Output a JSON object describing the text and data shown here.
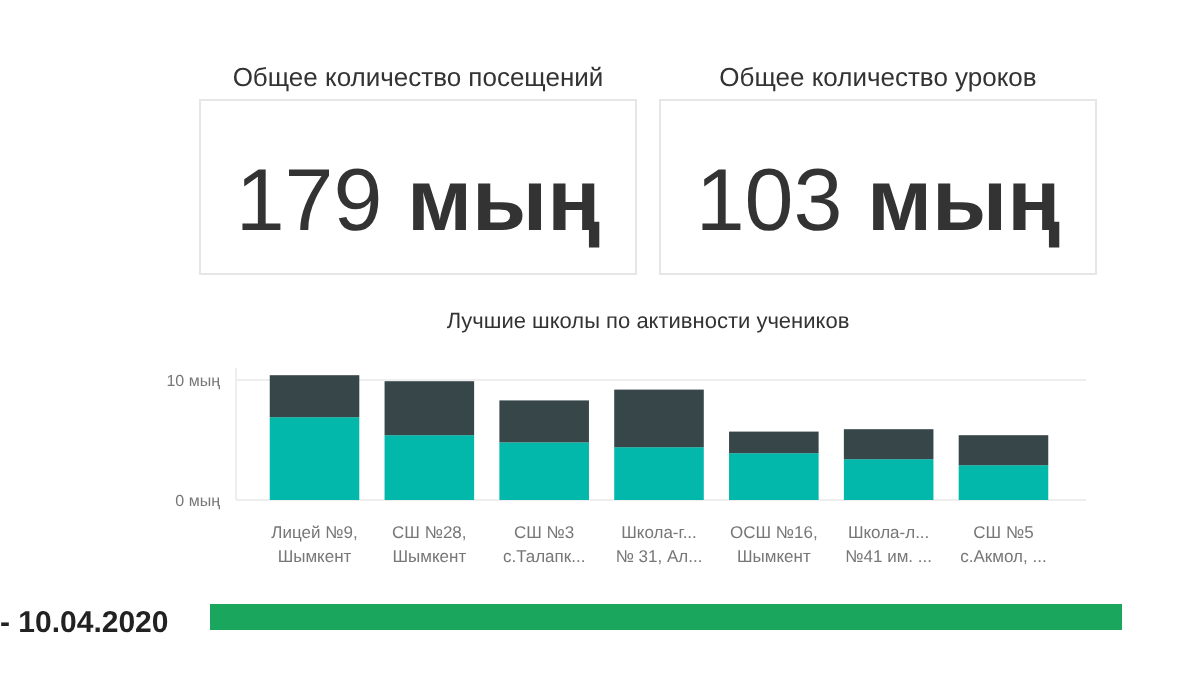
{
  "chart_data": {
    "type": "bar",
    "title": "Лучшие школы по активности учеников",
    "categories": [
      "Лицей №9,\nШымкент",
      "СШ №28,\nШымкент",
      "СШ №3\nс.Талапк...",
      "Школа-г...\n№ 31, Ал...",
      "ОСШ №16,\nШымкент",
      "Школа-л...\n№41 им. ...",
      "СШ №5\nс.Акмол, ..."
    ],
    "stacked": true,
    "series": [
      {
        "color": "#01b8aa",
        "values": [
          6.9,
          5.4,
          4.8,
          4.4,
          3.9,
          3.4,
          2.9
        ]
      },
      {
        "color": "#374649",
        "values": [
          3.5,
          4.5,
          3.5,
          4.8,
          1.8,
          2.5,
          2.5
        ]
      }
    ],
    "ylim": [
      0,
      11
    ],
    "yticks": [
      {
        "value": 0,
        "label": "0 мың"
      },
      {
        "value": 10,
        "label": "10 мың"
      }
    ],
    "grid": "y",
    "annotations": [
      "Общее количество посещений",
      "179 мың",
      "Общее количество уроков",
      "103 мың",
      "- 10.04.2020"
    ]
  }
}
